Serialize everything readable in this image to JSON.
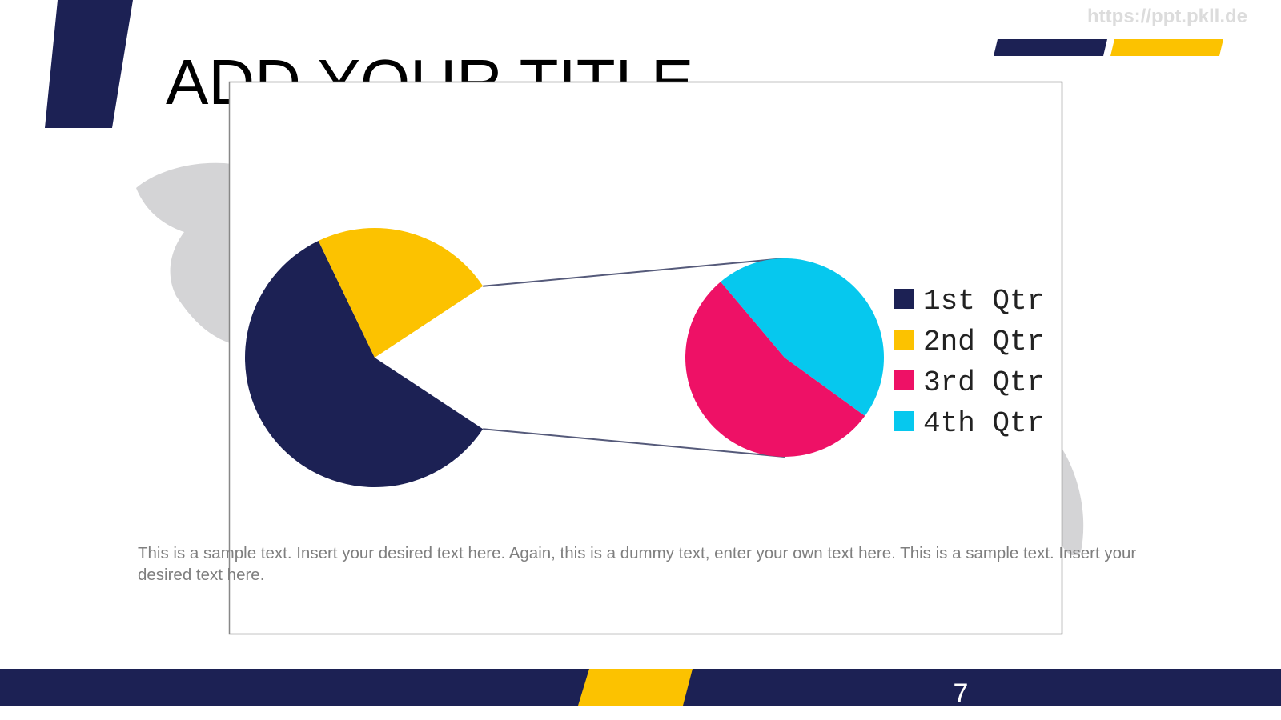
{
  "slide": {
    "title": "ADD YOUR TITLE",
    "body": "This is a sample text. Insert your desired text here. Again, this is a dummy text, enter your own text here. This is a sample text. Insert your desired text here.",
    "page_number": "7",
    "watermark": "https://ppt.pkll.de"
  },
  "chart_data": {
    "type": "pie-of-pie",
    "categories": [
      "1st Qtr",
      "2nd Qtr",
      "3rd Qtr",
      "4th Qtr"
    ],
    "values": [
      8.2,
      3.2,
      1.4,
      1.2
    ],
    "colors": [
      "#1c2154",
      "#fcc200",
      "#ee1166",
      "#06c8ee"
    ],
    "second_plot_points": 2,
    "legend": "right"
  }
}
